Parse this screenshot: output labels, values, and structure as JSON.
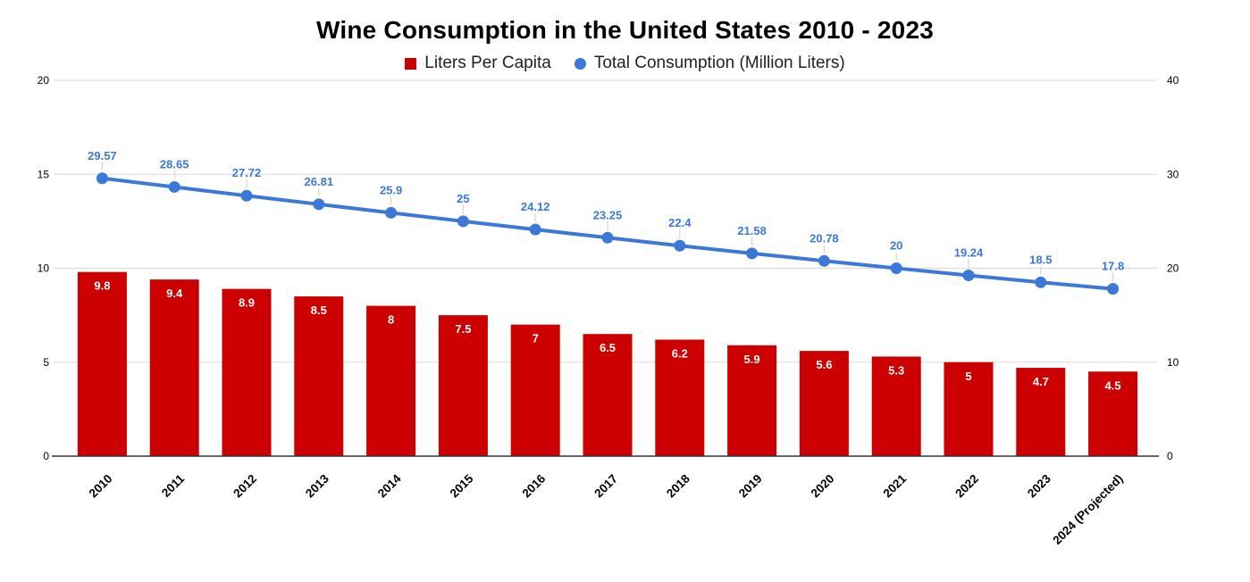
{
  "chart_data": {
    "type": "combo",
    "title": "Wine Consumption in the United States 2010 - 2023",
    "categories": [
      "2010",
      "2011",
      "2012",
      "2013",
      "2014",
      "2015",
      "2016",
      "2017",
      "2018",
      "2019",
      "2020",
      "2021",
      "2022",
      "2023",
      "2024 (Projected)"
    ],
    "series": [
      {
        "name": "Liters Per Capita",
        "type": "bar",
        "axis": "left",
        "color": "#cc0000",
        "label_color": "#ffffff",
        "values": [
          9.8,
          9.4,
          8.9,
          8.5,
          8,
          7.5,
          7,
          6.5,
          6.2,
          5.9,
          5.6,
          5.3,
          5,
          4.7,
          4.5
        ]
      },
      {
        "name": "Total Consumption (Million Liters)",
        "type": "line",
        "axis": "right",
        "color": "#3c78d8",
        "label_color": "#3c78d8",
        "values": [
          29.57,
          28.65,
          27.72,
          26.81,
          25.9,
          25,
          24.12,
          23.25,
          22.4,
          21.58,
          20.78,
          20,
          19.24,
          18.5,
          17.8
        ]
      }
    ],
    "left_axis": {
      "min": 0,
      "max": 20,
      "ticks": [
        0,
        5,
        10,
        15,
        20
      ]
    },
    "right_axis": {
      "min": 0,
      "max": 40,
      "ticks": [
        0,
        10,
        20,
        30,
        40
      ]
    },
    "grid": true,
    "legend_position": "top",
    "x_labels_rotated_degrees": 45,
    "data_labels_shown": true
  },
  "colors": {
    "bar": "#cc0000",
    "line": "#3c78d8",
    "gridline": "#d9d9d9",
    "axis_line": "#333333",
    "tick_label": "#000000",
    "leader_line": "#cccccc",
    "legend_text": "#212121"
  }
}
